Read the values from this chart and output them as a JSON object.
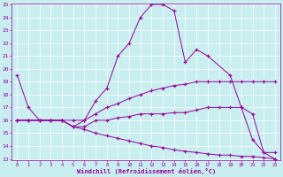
{
  "background_color": "#c8eef0",
  "line_color": "#990099",
  "xlabel": "Windchill (Refroidissement éolien,°C)",
  "ylim": [
    13,
    25
  ],
  "xlim": [
    -0.5,
    23.5
  ],
  "yticks": [
    13,
    14,
    15,
    16,
    17,
    18,
    19,
    20,
    21,
    22,
    23,
    24,
    25
  ],
  "xticks": [
    0,
    1,
    2,
    3,
    4,
    5,
    6,
    7,
    8,
    9,
    10,
    11,
    12,
    13,
    14,
    15,
    16,
    17,
    18,
    19,
    20,
    21,
    22,
    23
  ],
  "series": [
    {
      "x": [
        0,
        1,
        2,
        3,
        4,
        5,
        6,
        7,
        8,
        9,
        10,
        11,
        12,
        13,
        14,
        15,
        16,
        17,
        19,
        20,
        21,
        22,
        23
      ],
      "y": [
        19.5,
        17.0,
        16.0,
        16.0,
        16.0,
        15.5,
        16.0,
        17.5,
        18.5,
        21.0,
        22.0,
        24.0,
        25.0,
        25.0,
        24.5,
        20.5,
        21.5,
        21.0,
        19.5,
        17.0,
        14.5,
        13.5,
        13.5
      ]
    },
    {
      "x": [
        0,
        1,
        2,
        3,
        4,
        5,
        6,
        7,
        8,
        9,
        10,
        11,
        12,
        13,
        14,
        15,
        16,
        17,
        18,
        19,
        20,
        21,
        22,
        23
      ],
      "y": [
        16.0,
        16.0,
        16.0,
        16.0,
        16.0,
        16.0,
        16.0,
        16.5,
        17.0,
        17.3,
        17.7,
        18.0,
        18.3,
        18.5,
        18.7,
        18.8,
        19.0,
        19.0,
        19.0,
        19.0,
        19.0,
        19.0,
        19.0,
        19.0
      ]
    },
    {
      "x": [
        0,
        1,
        2,
        3,
        4,
        5,
        6,
        7,
        8,
        9,
        10,
        11,
        12,
        13,
        14,
        15,
        16,
        17,
        18,
        19,
        20,
        21,
        22,
        23
      ],
      "y": [
        16.0,
        16.0,
        16.0,
        16.0,
        16.0,
        15.5,
        15.5,
        16.0,
        16.0,
        16.2,
        16.3,
        16.5,
        16.5,
        16.5,
        16.6,
        16.6,
        16.8,
        17.0,
        17.0,
        17.0,
        17.0,
        16.5,
        13.5,
        13.0
      ]
    },
    {
      "x": [
        0,
        1,
        2,
        3,
        4,
        5,
        6,
        7,
        8,
        9,
        10,
        11,
        12,
        13,
        14,
        15,
        16,
        17,
        18,
        19,
        20,
        21,
        22,
        23
      ],
      "y": [
        16.0,
        16.0,
        16.0,
        16.0,
        16.0,
        15.5,
        15.3,
        15.0,
        14.8,
        14.6,
        14.4,
        14.2,
        14.0,
        13.9,
        13.7,
        13.6,
        13.5,
        13.4,
        13.3,
        13.3,
        13.2,
        13.2,
        13.1,
        13.0
      ]
    }
  ]
}
